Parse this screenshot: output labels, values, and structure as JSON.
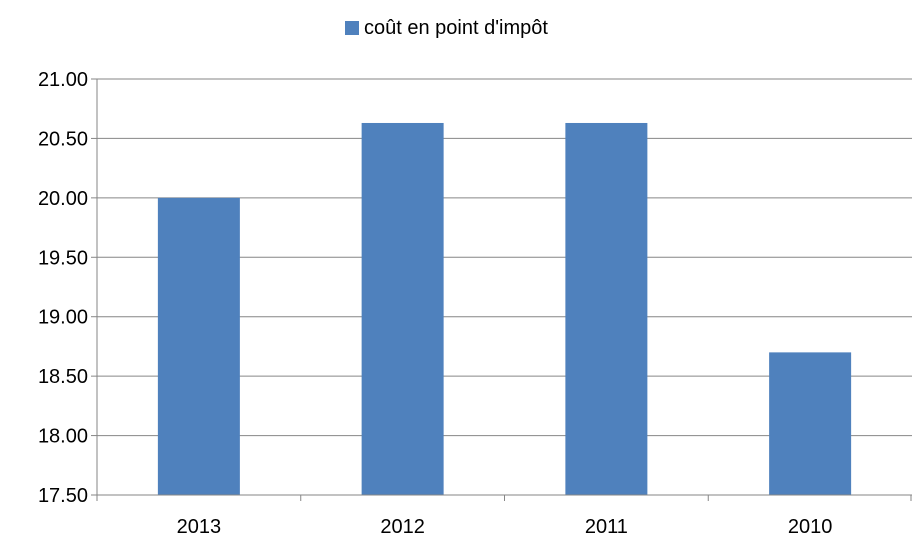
{
  "chart_data": {
    "type": "bar",
    "categories": [
      "2013",
      "2012",
      "2011",
      "2010"
    ],
    "series": [
      {
        "name": "coût en point d'impôt",
        "values": [
          20.0,
          20.63,
          20.63,
          18.7
        ],
        "color": "#4F81BD"
      }
    ],
    "legend": {
      "position": "top",
      "label": "coût en point d'impôt"
    },
    "yticks": [
      "17.50",
      "18.00",
      "18.50",
      "19.00",
      "19.50",
      "20.00",
      "20.50",
      "21.00"
    ],
    "ylim": [
      17.5,
      21.0
    ],
    "grid": true,
    "xlabel": "",
    "ylabel": ""
  }
}
